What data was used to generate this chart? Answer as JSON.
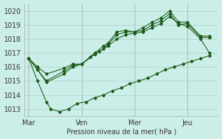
{
  "xlabel": "Pression niveau de la mer( hPa )",
  "bg_color": "#cceee8",
  "grid_color": "#aaccc8",
  "line_color": "#1a5c1a",
  "ylim": [
    1012.5,
    1020.5
  ],
  "xtick_labels": [
    "Mar",
    "Ven",
    "Mer",
    "Jeu"
  ],
  "xtick_positions": [
    0,
    24,
    48,
    72
  ],
  "ytick_values": [
    1013,
    1014,
    1015,
    1016,
    1017,
    1018,
    1019,
    1020
  ],
  "series": [
    {
      "x": [
        0,
        4,
        8,
        16,
        20,
        24,
        30,
        34,
        36,
        40,
        44,
        48,
        52,
        56,
        60,
        64,
        68,
        72,
        78,
        82
      ],
      "y": [
        1016.6,
        1016.0,
        1015.5,
        1015.9,
        1016.2,
        1016.2,
        1017.0,
        1017.5,
        1017.7,
        1018.5,
        1018.6,
        1018.5,
        1018.8,
        1019.2,
        1019.5,
        1020.0,
        1019.2,
        1019.2,
        1018.2,
        1018.2
      ]
    },
    {
      "x": [
        0,
        4,
        8,
        16,
        20,
        24,
        30,
        34,
        36,
        40,
        44,
        48,
        52,
        56,
        60,
        64,
        68,
        72,
        78,
        82
      ],
      "y": [
        1016.6,
        1015.8,
        1015.0,
        1015.7,
        1016.1,
        1016.2,
        1016.9,
        1017.3,
        1017.6,
        1018.3,
        1018.5,
        1018.5,
        1018.6,
        1019.0,
        1019.3,
        1019.8,
        1019.0,
        1019.1,
        1018.1,
        1018.1
      ]
    },
    {
      "x": [
        0,
        4,
        8,
        16,
        20,
        24,
        28,
        32,
        36,
        40,
        44,
        48,
        52,
        56,
        60,
        64,
        68,
        72,
        78,
        82
      ],
      "y": [
        1016.6,
        1015.8,
        1014.9,
        1015.5,
        1016.0,
        1016.2,
        1016.7,
        1017.1,
        1017.5,
        1018.0,
        1018.3,
        1018.4,
        1018.5,
        1018.8,
        1019.1,
        1019.6,
        1019.1,
        1018.9,
        1018.0,
        1017.0
      ]
    },
    {
      "x": [
        0,
        4,
        8,
        10,
        14,
        18,
        22,
        26,
        30,
        34,
        38,
        42,
        46,
        50,
        54,
        58,
        62,
        66,
        70,
        74,
        78,
        82
      ],
      "y": [
        1016.6,
        1015.0,
        1013.5,
        1013.0,
        1012.8,
        1013.0,
        1013.4,
        1013.5,
        1013.8,
        1014.0,
        1014.3,
        1014.5,
        1014.8,
        1015.0,
        1015.2,
        1015.5,
        1015.8,
        1016.0,
        1016.2,
        1016.4,
        1016.6,
        1016.8
      ]
    }
  ],
  "xlim": [
    -2,
    86
  ]
}
